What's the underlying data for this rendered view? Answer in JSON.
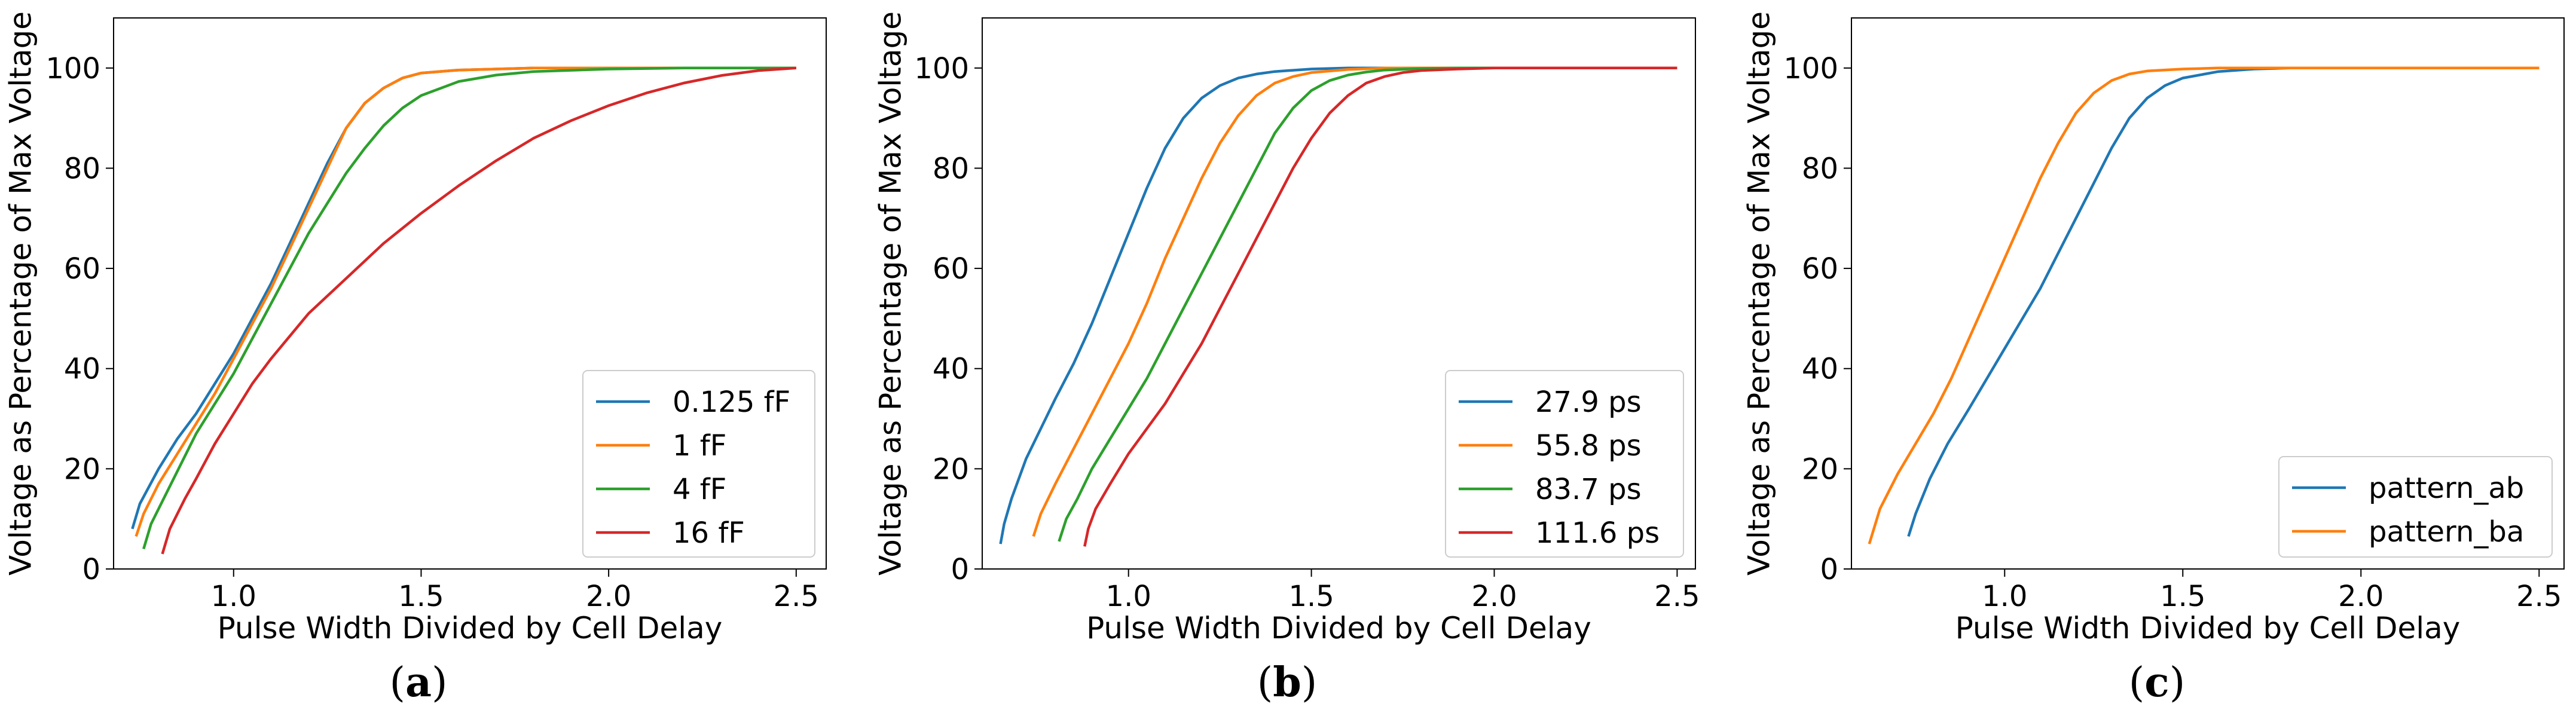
{
  "chart_data": [
    {
      "type": "line",
      "panel_label": "a",
      "xlabel": "Pulse Width Divided by Cell Delay",
      "ylabel": "Voltage as Percentage of Max Voltage",
      "xlim": [
        0.68,
        2.58
      ],
      "ylim": [
        0,
        110
      ],
      "xticks": [
        1.0,
        1.5,
        2.0,
        2.5
      ],
      "xtick_labels": [
        "1.0",
        "1.5",
        "2.0",
        "2.5"
      ],
      "yticks": [
        0,
        20,
        40,
        60,
        80,
        100
      ],
      "ytick_labels": [
        "0",
        "20",
        "40",
        "60",
        "80",
        "100"
      ],
      "legend_position": "lower-right",
      "series": [
        {
          "name": "0.125 fF",
          "color": "#1f77b4",
          "x": [
            0.73,
            0.75,
            0.8,
            0.85,
            0.9,
            0.95,
            1.0,
            1.05,
            1.1,
            1.15,
            1.2,
            1.25,
            1.3,
            1.35,
            1.4,
            1.45,
            1.5,
            1.6,
            1.8,
            2.0,
            2.5
          ],
          "y": [
            8,
            13,
            20,
            26,
            31,
            37,
            43,
            50,
            57,
            65,
            73,
            81,
            88,
            93,
            96,
            98,
            99,
            99.6,
            100,
            100,
            100
          ]
        },
        {
          "name": "1 fF",
          "color": "#ff7f0e",
          "x": [
            0.74,
            0.76,
            0.8,
            0.85,
            0.9,
            0.95,
            1.0,
            1.05,
            1.1,
            1.15,
            1.2,
            1.25,
            1.3,
            1.35,
            1.4,
            1.45,
            1.5,
            1.6,
            1.8,
            2.0,
            2.5
          ],
          "y": [
            6.5,
            11,
            17,
            23,
            29,
            35,
            42,
            49,
            56,
            64,
            72,
            80,
            88,
            93,
            96,
            98,
            99,
            99.6,
            100,
            100,
            100
          ]
        },
        {
          "name": "4 fF",
          "color": "#2ca02c",
          "x": [
            0.76,
            0.78,
            0.82,
            0.86,
            0.9,
            0.95,
            1.0,
            1.05,
            1.1,
            1.15,
            1.2,
            1.25,
            1.3,
            1.35,
            1.4,
            1.45,
            1.5,
            1.6,
            1.7,
            1.8,
            2.0,
            2.2,
            2.5
          ],
          "y": [
            4,
            9,
            15,
            21,
            27,
            33,
            39,
            46,
            53,
            60,
            67,
            73,
            79,
            84,
            88.5,
            92,
            94.5,
            97.3,
            98.6,
            99.3,
            99.8,
            100,
            100
          ]
        },
        {
          "name": "16 fF",
          "color": "#d62728",
          "x": [
            0.81,
            0.83,
            0.87,
            0.9,
            0.95,
            1.0,
            1.05,
            1.1,
            1.2,
            1.3,
            1.4,
            1.5,
            1.6,
            1.7,
            1.8,
            1.9,
            2.0,
            2.1,
            2.2,
            2.3,
            2.4,
            2.5
          ],
          "y": [
            3,
            8,
            14,
            18,
            25,
            31,
            37,
            42,
            51,
            58,
            65,
            71,
            76.5,
            81.5,
            86,
            89.5,
            92.5,
            95,
            97,
            98.5,
            99.5,
            100
          ]
        }
      ]
    },
    {
      "type": "line",
      "panel_label": "b",
      "xlabel": "Pulse Width Divided by Cell Delay",
      "ylabel": "Voltage as Percentage of Max Voltage",
      "xlim": [
        0.6,
        2.55
      ],
      "ylim": [
        0,
        110
      ],
      "xticks": [
        1.0,
        1.5,
        2.0,
        2.5
      ],
      "xtick_labels": [
        "1.0",
        "1.5",
        "2.0",
        "2.5"
      ],
      "yticks": [
        0,
        20,
        40,
        60,
        80,
        100
      ],
      "ytick_labels": [
        "0",
        "20",
        "40",
        "60",
        "80",
        "100"
      ],
      "legend_position": "lower-right",
      "series": [
        {
          "name": "27.9 ps",
          "color": "#1f77b4",
          "x": [
            0.65,
            0.66,
            0.68,
            0.72,
            0.76,
            0.8,
            0.85,
            0.9,
            0.95,
            1.0,
            1.05,
            1.1,
            1.15,
            1.2,
            1.25,
            1.3,
            1.35,
            1.4,
            1.5,
            1.6,
            1.8,
            2.5
          ],
          "y": [
            5,
            9,
            14,
            22,
            28,
            34,
            41,
            49,
            58,
            67,
            76,
            84,
            90,
            94,
            96.5,
            98,
            98.8,
            99.3,
            99.8,
            100,
            100,
            100
          ]
        },
        {
          "name": "55.8 ps",
          "color": "#ff7f0e",
          "x": [
            0.74,
            0.76,
            0.8,
            0.85,
            0.9,
            0.95,
            1.0,
            1.05,
            1.1,
            1.15,
            1.2,
            1.25,
            1.3,
            1.35,
            1.4,
            1.45,
            1.5,
            1.6,
            1.7,
            2.0,
            2.5
          ],
          "y": [
            6.5,
            11,
            17,
            24,
            31,
            38,
            45,
            53,
            62,
            70,
            78,
            85,
            90.5,
            94.5,
            97,
            98.3,
            99.1,
            99.7,
            100,
            100,
            100
          ]
        },
        {
          "name": "83.7 ps",
          "color": "#2ca02c",
          "x": [
            0.81,
            0.83,
            0.86,
            0.9,
            0.95,
            1.0,
            1.05,
            1.1,
            1.15,
            1.2,
            1.25,
            1.3,
            1.35,
            1.4,
            1.45,
            1.5,
            1.55,
            1.6,
            1.65,
            1.7,
            1.8,
            1.9,
            2.0,
            2.5
          ],
          "y": [
            5.5,
            10,
            14,
            20,
            26,
            32,
            38,
            45,
            52,
            59,
            66,
            73,
            80,
            87,
            92,
            95.5,
            97.5,
            98.6,
            99.2,
            99.6,
            99.9,
            100,
            100,
            100
          ]
        },
        {
          "name": "111.6 ps",
          "color": "#d62728",
          "x": [
            0.88,
            0.89,
            0.91,
            0.95,
            1.0,
            1.05,
            1.1,
            1.15,
            1.2,
            1.25,
            1.3,
            1.35,
            1.4,
            1.45,
            1.5,
            1.55,
            1.6,
            1.65,
            1.7,
            1.75,
            1.8,
            1.9,
            2.0,
            2.2,
            2.5
          ],
          "y": [
            4.5,
            8,
            12,
            17,
            23,
            28,
            33,
            39,
            45,
            52,
            59,
            66,
            73,
            80,
            86,
            91,
            94.5,
            97,
            98.3,
            99.1,
            99.5,
            99.8,
            100,
            100,
            100
          ]
        }
      ]
    },
    {
      "type": "line",
      "panel_label": "c",
      "xlabel": "Pulse Width Divided by Cell Delay",
      "ylabel": "Voltage as Percentage of Max Voltage",
      "xlim": [
        0.57,
        2.57
      ],
      "ylim": [
        0,
        110
      ],
      "xticks": [
        1.0,
        1.5,
        2.0,
        2.5
      ],
      "xtick_labels": [
        "1.0",
        "1.5",
        "2.0",
        "2.5"
      ],
      "yticks": [
        0,
        20,
        40,
        60,
        80,
        100
      ],
      "ytick_labels": [
        "0",
        "20",
        "40",
        "60",
        "80",
        "100"
      ],
      "legend_position": "lower-right",
      "series": [
        {
          "name": "pattern_ab",
          "color": "#1f77b4",
          "x": [
            0.73,
            0.75,
            0.79,
            0.84,
            0.9,
            0.95,
            1.0,
            1.05,
            1.1,
            1.15,
            1.2,
            1.25,
            1.3,
            1.35,
            1.4,
            1.45,
            1.5,
            1.6,
            1.7,
            1.8,
            2.0,
            2.5
          ],
          "y": [
            6.5,
            11,
            18,
            25,
            32,
            38,
            44,
            50,
            56,
            63,
            70,
            77,
            84,
            90,
            94,
            96.5,
            98,
            99.3,
            99.8,
            100,
            100,
            100
          ]
        },
        {
          "name": "pattern_ba",
          "color": "#ff7f0e",
          "x": [
            0.62,
            0.65,
            0.7,
            0.75,
            0.8,
            0.85,
            0.9,
            0.95,
            1.0,
            1.05,
            1.1,
            1.15,
            1.2,
            1.25,
            1.3,
            1.35,
            1.4,
            1.5,
            1.6,
            1.8,
            2.0,
            2.5
          ],
          "y": [
            5,
            12,
            19,
            25,
            31,
            38,
            46,
            54,
            62,
            70,
            78,
            85,
            91,
            95,
            97.5,
            98.8,
            99.4,
            99.8,
            100,
            100,
            100,
            100
          ]
        }
      ]
    }
  ]
}
